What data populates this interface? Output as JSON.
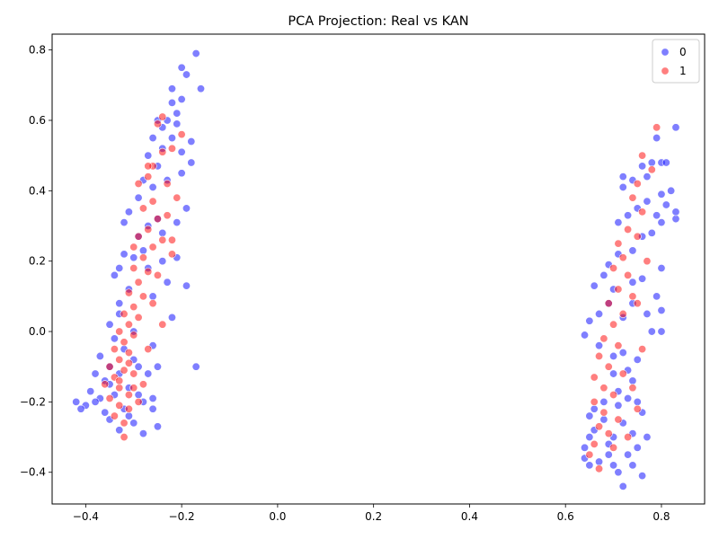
{
  "chart_data": {
    "type": "scatter",
    "title": "PCA Projection: Real vs KAN",
    "xlabel": "",
    "ylabel": "",
    "xlim": [
      -0.47,
      0.89
    ],
    "ylim": [
      -0.49,
      0.845
    ],
    "x_ticks": [
      -0.4,
      -0.2,
      0.0,
      0.2,
      0.4,
      0.6,
      0.8
    ],
    "x_tick_labels": [
      "−0.4",
      "−0.2",
      "0.0",
      "0.2",
      "0.4",
      "0.6",
      "0.8"
    ],
    "y_ticks": [
      -0.4,
      -0.2,
      0.0,
      0.2,
      0.4,
      0.6,
      0.8
    ],
    "y_tick_labels": [
      "−0.4",
      "−0.2",
      "0.0",
      "0.2",
      "0.4",
      "0.6",
      "0.8"
    ],
    "grid": false,
    "legend_position": "top-right",
    "legend": [
      {
        "label": "0",
        "color": "#0000ff"
      },
      {
        "label": "1",
        "color": "#ff0000"
      }
    ],
    "series": [
      {
        "name": "0",
        "color": "#0000ff",
        "points": [
          [
            -0.17,
            0.79
          ],
          [
            -0.2,
            0.75
          ],
          [
            -0.16,
            0.69
          ],
          [
            -0.19,
            0.73
          ],
          [
            -0.22,
            0.69
          ],
          [
            -0.2,
            0.66
          ],
          [
            -0.22,
            0.65
          ],
          [
            -0.21,
            0.62
          ],
          [
            -0.23,
            0.6
          ],
          [
            -0.25,
            0.6
          ],
          [
            -0.24,
            0.58
          ],
          [
            -0.21,
            0.59
          ],
          [
            -0.18,
            0.54
          ],
          [
            -0.2,
            0.51
          ],
          [
            -0.22,
            0.55
          ],
          [
            -0.24,
            0.52
          ],
          [
            -0.26,
            0.55
          ],
          [
            -0.27,
            0.5
          ],
          [
            -0.25,
            0.47
          ],
          [
            -0.2,
            0.45
          ],
          [
            -0.18,
            0.48
          ],
          [
            -0.23,
            0.43
          ],
          [
            -0.26,
            0.41
          ],
          [
            -0.28,
            0.43
          ],
          [
            -0.29,
            0.38
          ],
          [
            -0.31,
            0.34
          ],
          [
            -0.32,
            0.31
          ],
          [
            -0.21,
            0.31
          ],
          [
            -0.19,
            0.35
          ],
          [
            -0.24,
            0.28
          ],
          [
            -0.3,
            0.21
          ],
          [
            -0.33,
            0.18
          ],
          [
            -0.34,
            0.16
          ],
          [
            -0.31,
            0.12
          ],
          [
            -0.21,
            0.21
          ],
          [
            -0.23,
            0.14
          ],
          [
            -0.19,
            0.13
          ],
          [
            -0.26,
            0.1
          ],
          [
            -0.33,
            0.05
          ],
          [
            -0.35,
            0.02
          ],
          [
            -0.22,
            0.04
          ],
          [
            -0.34,
            -0.02
          ],
          [
            -0.37,
            -0.07
          ],
          [
            -0.35,
            -0.1
          ],
          [
            -0.38,
            -0.12
          ],
          [
            -0.39,
            -0.17
          ],
          [
            -0.4,
            -0.21
          ],
          [
            -0.42,
            -0.2
          ],
          [
            -0.41,
            -0.22
          ],
          [
            -0.37,
            -0.19
          ],
          [
            -0.36,
            -0.23
          ],
          [
            -0.35,
            -0.25
          ],
          [
            -0.33,
            -0.28
          ],
          [
            -0.32,
            -0.22
          ],
          [
            -0.3,
            -0.26
          ],
          [
            -0.28,
            -0.29
          ],
          [
            -0.25,
            -0.27
          ],
          [
            -0.26,
            -0.22
          ],
          [
            -0.28,
            -0.2
          ],
          [
            -0.26,
            -0.19
          ],
          [
            -0.27,
            -0.12
          ],
          [
            -0.29,
            -0.1
          ],
          [
            -0.26,
            -0.04
          ],
          [
            -0.25,
            -0.1
          ],
          [
            -0.17,
            -0.1
          ],
          [
            -0.3,
            0.0
          ],
          [
            -0.32,
            -0.05
          ],
          [
            -0.36,
            -0.14
          ],
          [
            -0.34,
            -0.18
          ],
          [
            -0.31,
            -0.16
          ],
          [
            -0.3,
            -0.08
          ],
          [
            -0.33,
            0.08
          ],
          [
            -0.28,
            0.23
          ],
          [
            -0.27,
            0.3
          ],
          [
            -0.25,
            0.32
          ],
          [
            -0.29,
            0.27
          ],
          [
            -0.32,
            0.22
          ],
          [
            -0.35,
            -0.15
          ],
          [
            -0.38,
            -0.2
          ],
          [
            -0.31,
            -0.24
          ],
          [
            -0.29,
            -0.18
          ],
          [
            -0.33,
            -0.12
          ],
          [
            -0.27,
            0.18
          ],
          [
            -0.24,
            0.2
          ],
          [
            0.83,
            0.58
          ],
          [
            0.79,
            0.55
          ],
          [
            0.8,
            0.48
          ],
          [
            0.81,
            0.48
          ],
          [
            0.78,
            0.48
          ],
          [
            0.76,
            0.47
          ],
          [
            0.77,
            0.44
          ],
          [
            0.74,
            0.43
          ],
          [
            0.72,
            0.44
          ],
          [
            0.72,
            0.41
          ],
          [
            0.8,
            0.39
          ],
          [
            0.82,
            0.4
          ],
          [
            0.77,
            0.37
          ],
          [
            0.75,
            0.35
          ],
          [
            0.73,
            0.33
          ],
          [
            0.71,
            0.31
          ],
          [
            0.81,
            0.36
          ],
          [
            0.83,
            0.32
          ],
          [
            0.83,
            0.34
          ],
          [
            0.79,
            0.33
          ],
          [
            0.8,
            0.31
          ],
          [
            0.78,
            0.28
          ],
          [
            0.76,
            0.27
          ],
          [
            0.74,
            0.23
          ],
          [
            0.71,
            0.22
          ],
          [
            0.69,
            0.19
          ],
          [
            0.68,
            0.16
          ],
          [
            0.66,
            0.13
          ],
          [
            0.7,
            0.12
          ],
          [
            0.74,
            0.14
          ],
          [
            0.76,
            0.15
          ],
          [
            0.8,
            0.18
          ],
          [
            0.79,
            0.1
          ],
          [
            0.8,
            0.06
          ],
          [
            0.78,
            0.0
          ],
          [
            0.8,
            0.0
          ],
          [
            0.77,
            0.05
          ],
          [
            0.74,
            0.08
          ],
          [
            0.72,
            0.04
          ],
          [
            0.69,
            0.08
          ],
          [
            0.67,
            0.05
          ],
          [
            0.65,
            0.03
          ],
          [
            0.64,
            -0.01
          ],
          [
            0.67,
            -0.04
          ],
          [
            0.7,
            -0.07
          ],
          [
            0.73,
            -0.11
          ],
          [
            0.75,
            -0.08
          ],
          [
            0.74,
            -0.14
          ],
          [
            0.71,
            -0.17
          ],
          [
            0.68,
            -0.2
          ],
          [
            0.66,
            -0.22
          ],
          [
            0.65,
            -0.24
          ],
          [
            0.66,
            -0.28
          ],
          [
            0.65,
            -0.3
          ],
          [
            0.64,
            -0.33
          ],
          [
            0.64,
            -0.36
          ],
          [
            0.65,
            -0.38
          ],
          [
            0.67,
            -0.37
          ],
          [
            0.69,
            -0.35
          ],
          [
            0.7,
            -0.38
          ],
          [
            0.71,
            -0.4
          ],
          [
            0.72,
            -0.44
          ],
          [
            0.74,
            -0.38
          ],
          [
            0.75,
            -0.33
          ],
          [
            0.73,
            -0.35
          ],
          [
            0.77,
            -0.3
          ],
          [
            0.76,
            -0.41
          ],
          [
            0.74,
            -0.29
          ],
          [
            0.72,
            -0.26
          ],
          [
            0.7,
            -0.3
          ],
          [
            0.68,
            -0.25
          ],
          [
            0.69,
            -0.32
          ],
          [
            0.71,
            -0.21
          ],
          [
            0.73,
            -0.19
          ],
          [
            0.75,
            -0.2
          ],
          [
            0.76,
            -0.23
          ],
          [
            0.7,
            -0.12
          ],
          [
            0.72,
            -0.06
          ]
        ]
      },
      {
        "name": "1",
        "color": "#ff0000",
        "points": [
          [
            -0.24,
            0.61
          ],
          [
            -0.25,
            0.59
          ],
          [
            -0.2,
            0.56
          ],
          [
            -0.22,
            0.52
          ],
          [
            -0.24,
            0.51
          ],
          [
            -0.26,
            0.47
          ],
          [
            -0.27,
            0.44
          ],
          [
            -0.29,
            0.42
          ],
          [
            -0.23,
            0.42
          ],
          [
            -0.21,
            0.38
          ],
          [
            -0.26,
            0.37
          ],
          [
            -0.28,
            0.35
          ],
          [
            -0.25,
            0.32
          ],
          [
            -0.23,
            0.33
          ],
          [
            -0.27,
            0.29
          ],
          [
            -0.29,
            0.27
          ],
          [
            -0.24,
            0.26
          ],
          [
            -0.22,
            0.26
          ],
          [
            -0.26,
            0.24
          ],
          [
            -0.3,
            0.24
          ],
          [
            -0.28,
            0.21
          ],
          [
            -0.3,
            0.18
          ],
          [
            -0.27,
            0.17
          ],
          [
            -0.25,
            0.16
          ],
          [
            -0.29,
            0.14
          ],
          [
            -0.31,
            0.11
          ],
          [
            -0.28,
            0.1
          ],
          [
            -0.3,
            0.07
          ],
          [
            -0.32,
            0.05
          ],
          [
            -0.29,
            0.04
          ],
          [
            -0.31,
            0.02
          ],
          [
            -0.33,
            0.0
          ],
          [
            -0.3,
            -0.01
          ],
          [
            -0.32,
            -0.03
          ],
          [
            -0.34,
            -0.05
          ],
          [
            -0.31,
            -0.06
          ],
          [
            -0.33,
            -0.08
          ],
          [
            -0.35,
            -0.1
          ],
          [
            -0.32,
            -0.11
          ],
          [
            -0.3,
            -0.12
          ],
          [
            -0.34,
            -0.13
          ],
          [
            -0.36,
            -0.15
          ],
          [
            -0.33,
            -0.16
          ],
          [
            -0.31,
            -0.18
          ],
          [
            -0.35,
            -0.19
          ],
          [
            -0.33,
            -0.21
          ],
          [
            -0.31,
            -0.22
          ],
          [
            -0.34,
            -0.24
          ],
          [
            -0.32,
            -0.26
          ],
          [
            -0.32,
            -0.3
          ],
          [
            -0.29,
            -0.2
          ],
          [
            -0.28,
            -0.15
          ],
          [
            -0.27,
            -0.05
          ],
          [
            -0.24,
            0.02
          ],
          [
            -0.26,
            0.08
          ],
          [
            -0.22,
            0.22
          ],
          [
            -0.27,
            0.47
          ],
          [
            -0.33,
            -0.14
          ],
          [
            -0.3,
            -0.16
          ],
          [
            -0.31,
            -0.09
          ],
          [
            0.79,
            0.58
          ],
          [
            0.76,
            0.5
          ],
          [
            0.78,
            0.46
          ],
          [
            0.75,
            0.42
          ],
          [
            0.74,
            0.38
          ],
          [
            0.76,
            0.34
          ],
          [
            0.73,
            0.29
          ],
          [
            0.75,
            0.27
          ],
          [
            0.71,
            0.25
          ],
          [
            0.72,
            0.21
          ],
          [
            0.7,
            0.18
          ],
          [
            0.73,
            0.16
          ],
          [
            0.71,
            0.12
          ],
          [
            0.74,
            0.1
          ],
          [
            0.69,
            0.08
          ],
          [
            0.72,
            0.05
          ],
          [
            0.7,
            0.02
          ],
          [
            0.68,
            -0.02
          ],
          [
            0.71,
            -0.04
          ],
          [
            0.67,
            -0.07
          ],
          [
            0.69,
            -0.1
          ],
          [
            0.72,
            -0.12
          ],
          [
            0.66,
            -0.13
          ],
          [
            0.68,
            -0.16
          ],
          [
            0.7,
            -0.18
          ],
          [
            0.66,
            -0.2
          ],
          [
            0.68,
            -0.23
          ],
          [
            0.71,
            -0.25
          ],
          [
            0.67,
            -0.27
          ],
          [
            0.69,
            -0.29
          ],
          [
            0.66,
            -0.32
          ],
          [
            0.7,
            -0.33
          ],
          [
            0.65,
            -0.35
          ],
          [
            0.67,
            -0.39
          ],
          [
            0.73,
            -0.3
          ],
          [
            0.75,
            -0.22
          ],
          [
            0.74,
            -0.16
          ],
          [
            0.76,
            -0.05
          ],
          [
            0.75,
            0.08
          ],
          [
            0.77,
            0.2
          ]
        ]
      }
    ]
  }
}
